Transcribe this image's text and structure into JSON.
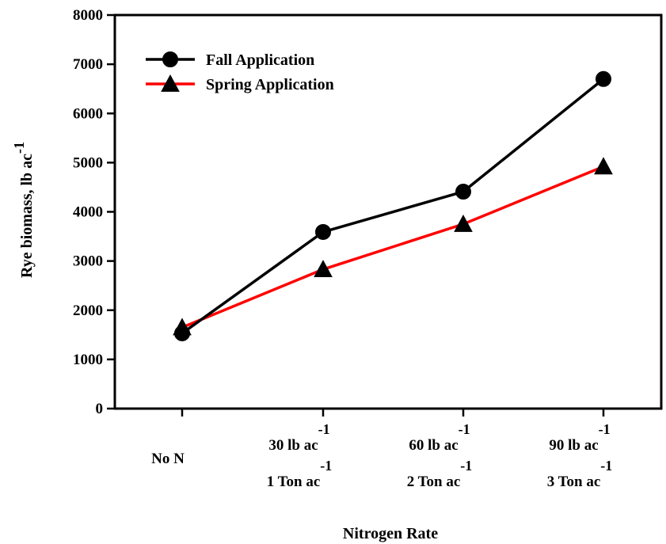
{
  "chart_data": {
    "type": "line",
    "title": "",
    "xlabel": "Nitrogen Rate",
    "ylabel": "Rye biomass, lb ac",
    "ylabel_sup": "-1",
    "ylim": [
      0,
      8000
    ],
    "yticks": [
      "0",
      "1000",
      "2000",
      "3000",
      "4000",
      "5000",
      "6000",
      "7000",
      "8000"
    ],
    "categories": [
      {
        "line1": "No N",
        "line1_sup": "",
        "line2": "",
        "line2_sup": ""
      },
      {
        "line1": "30 lb ac",
        "line1_sup": "-1",
        "line2": "1 Ton ac",
        "line2_sup": "-1"
      },
      {
        "line1": "60 lb ac",
        "line1_sup": "-1",
        "line2": "2 Ton ac",
        "line2_sup": "-1"
      },
      {
        "line1": "90 lb ac",
        "line1_sup": "-1",
        "line2": "3 Ton ac",
        "line2_sup": "-1"
      }
    ],
    "series": [
      {
        "name": "Fall Application",
        "color": "#000000",
        "marker": "circle",
        "values": [
          1530,
          3590,
          4410,
          6700
        ]
      },
      {
        "name": "Spring Application",
        "color": "#ff0000",
        "marker": "triangle",
        "values": [
          1650,
          2830,
          3750,
          4920
        ]
      }
    ],
    "legend_position": "top-left",
    "grid": false
  }
}
